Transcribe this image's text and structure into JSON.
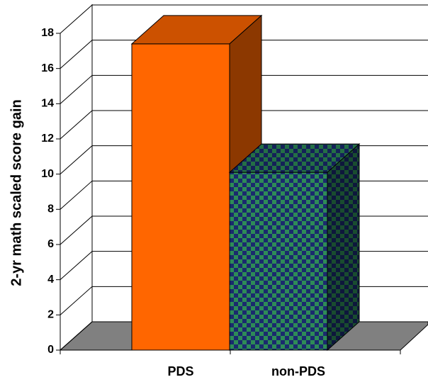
{
  "chart_data": {
    "type": "bar3d",
    "y_label": "2-yr math scaled score gain",
    "categories": [
      "PDS",
      "non-PDS"
    ],
    "values": [
      17.4,
      10.1
    ],
    "colors": [
      "#ff6600",
      "#2e8b57"
    ],
    "ylim": [
      0,
      18
    ],
    "yticks": [
      0,
      2,
      4,
      6,
      8,
      10,
      12,
      14,
      16,
      18
    ],
    "grid": true
  }
}
